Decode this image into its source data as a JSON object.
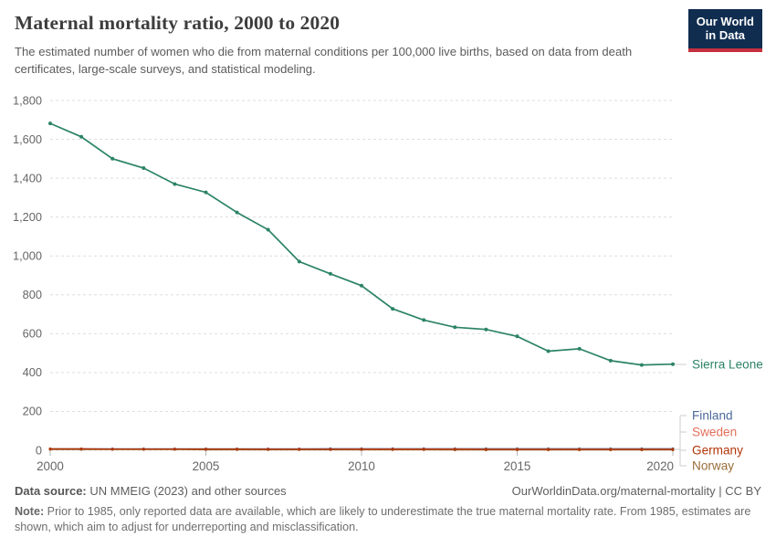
{
  "header": {
    "title": "Maternal mortality ratio, 2000 to 2020",
    "subtitle": "The estimated number of women who die from maternal conditions per 100,000 live births, based on data from death certificates, large-scale surveys, and statistical modeling.",
    "logo": {
      "line1": "Our World",
      "line2": "in Data",
      "bg_color": "#102d50",
      "accent_color": "#c5303e"
    }
  },
  "chart_data": {
    "type": "line",
    "title": "Maternal mortality ratio, 2000 to 2020",
    "xlabel": "",
    "ylabel": "",
    "ylim": [
      0,
      1800
    ],
    "grid": "dashed horizontal",
    "legend_position": "right",
    "x": [
      2000,
      2001,
      2002,
      2003,
      2004,
      2005,
      2006,
      2007,
      2008,
      2009,
      2010,
      2011,
      2012,
      2013,
      2014,
      2015,
      2016,
      2017,
      2018,
      2019,
      2020
    ],
    "series": [
      {
        "name": "Sierra Leone",
        "color": "#2C8465",
        "values": [
          1682,
          1613,
          1500,
          1452,
          1370,
          1327,
          1224,
          1135,
          971,
          908,
          847,
          728,
          670,
          633,
          622,
          586,
          510,
          522,
          461,
          439,
          443
        ]
      },
      {
        "name": "Finland",
        "color": "#4C6A9C",
        "values": [
          7,
          7,
          7,
          7,
          7,
          7,
          7,
          7,
          7,
          8,
          8,
          8,
          8,
          8,
          8,
          8,
          8,
          8,
          8,
          8,
          8
        ]
      },
      {
        "name": "Sweden",
        "color": "#E56E5A",
        "values": [
          5,
          5,
          5,
          5,
          5,
          5,
          5,
          5,
          5,
          5,
          6,
          6,
          6,
          6,
          5,
          5,
          5,
          5,
          5,
          5,
          5
        ]
      },
      {
        "name": "Germany",
        "color": "#B13507",
        "values": [
          7,
          7,
          6,
          6,
          6,
          6,
          6,
          5,
          5,
          5,
          5,
          5,
          5,
          5,
          4,
          4,
          4,
          4,
          4,
          4,
          4
        ]
      },
      {
        "name": "Norway",
        "color": "#996D39",
        "values": [
          4,
          4,
          4,
          4,
          4,
          3,
          3,
          3,
          3,
          3,
          3,
          3,
          3,
          2,
          2,
          2,
          2,
          2,
          2,
          2,
          2
        ]
      }
    ],
    "y_ticks": [
      {
        "value": 0,
        "label": "0"
      },
      {
        "value": 200,
        "label": "200"
      },
      {
        "value": 400,
        "label": "400"
      },
      {
        "value": 600,
        "label": "600"
      },
      {
        "value": 800,
        "label": "800"
      },
      {
        "value": 1000,
        "label": "1,000"
      },
      {
        "value": 1200,
        "label": "1,200"
      },
      {
        "value": 1400,
        "label": "1,400"
      },
      {
        "value": 1600,
        "label": "1,600"
      },
      {
        "value": 1800,
        "label": "1,800"
      }
    ],
    "x_ticks": [
      {
        "value": 2000,
        "label": "2000"
      },
      {
        "value": 2005,
        "label": "2005"
      },
      {
        "value": 2010,
        "label": "2010"
      },
      {
        "value": 2015,
        "label": "2015"
      },
      {
        "value": 2020,
        "label": "2020"
      }
    ],
    "colors": {
      "grid": "#dedede",
      "axis_text": "#666666",
      "connector": "#cccccc",
      "tick": "#b5b5b5"
    }
  },
  "footer": {
    "datasource_label": "Data source:",
    "datasource_text": " UN MMEIG (2023) and other sources",
    "link_text": "OurWorldinData.org/maternal-mortality | CC BY",
    "note_label": "Note:",
    "note_text": " Prior to 1985, only reported data are available, which are likely to underestimate the true maternal mortality rate. From 1985, estimates are shown, which aim to adjust for underreporting and misclassification."
  }
}
